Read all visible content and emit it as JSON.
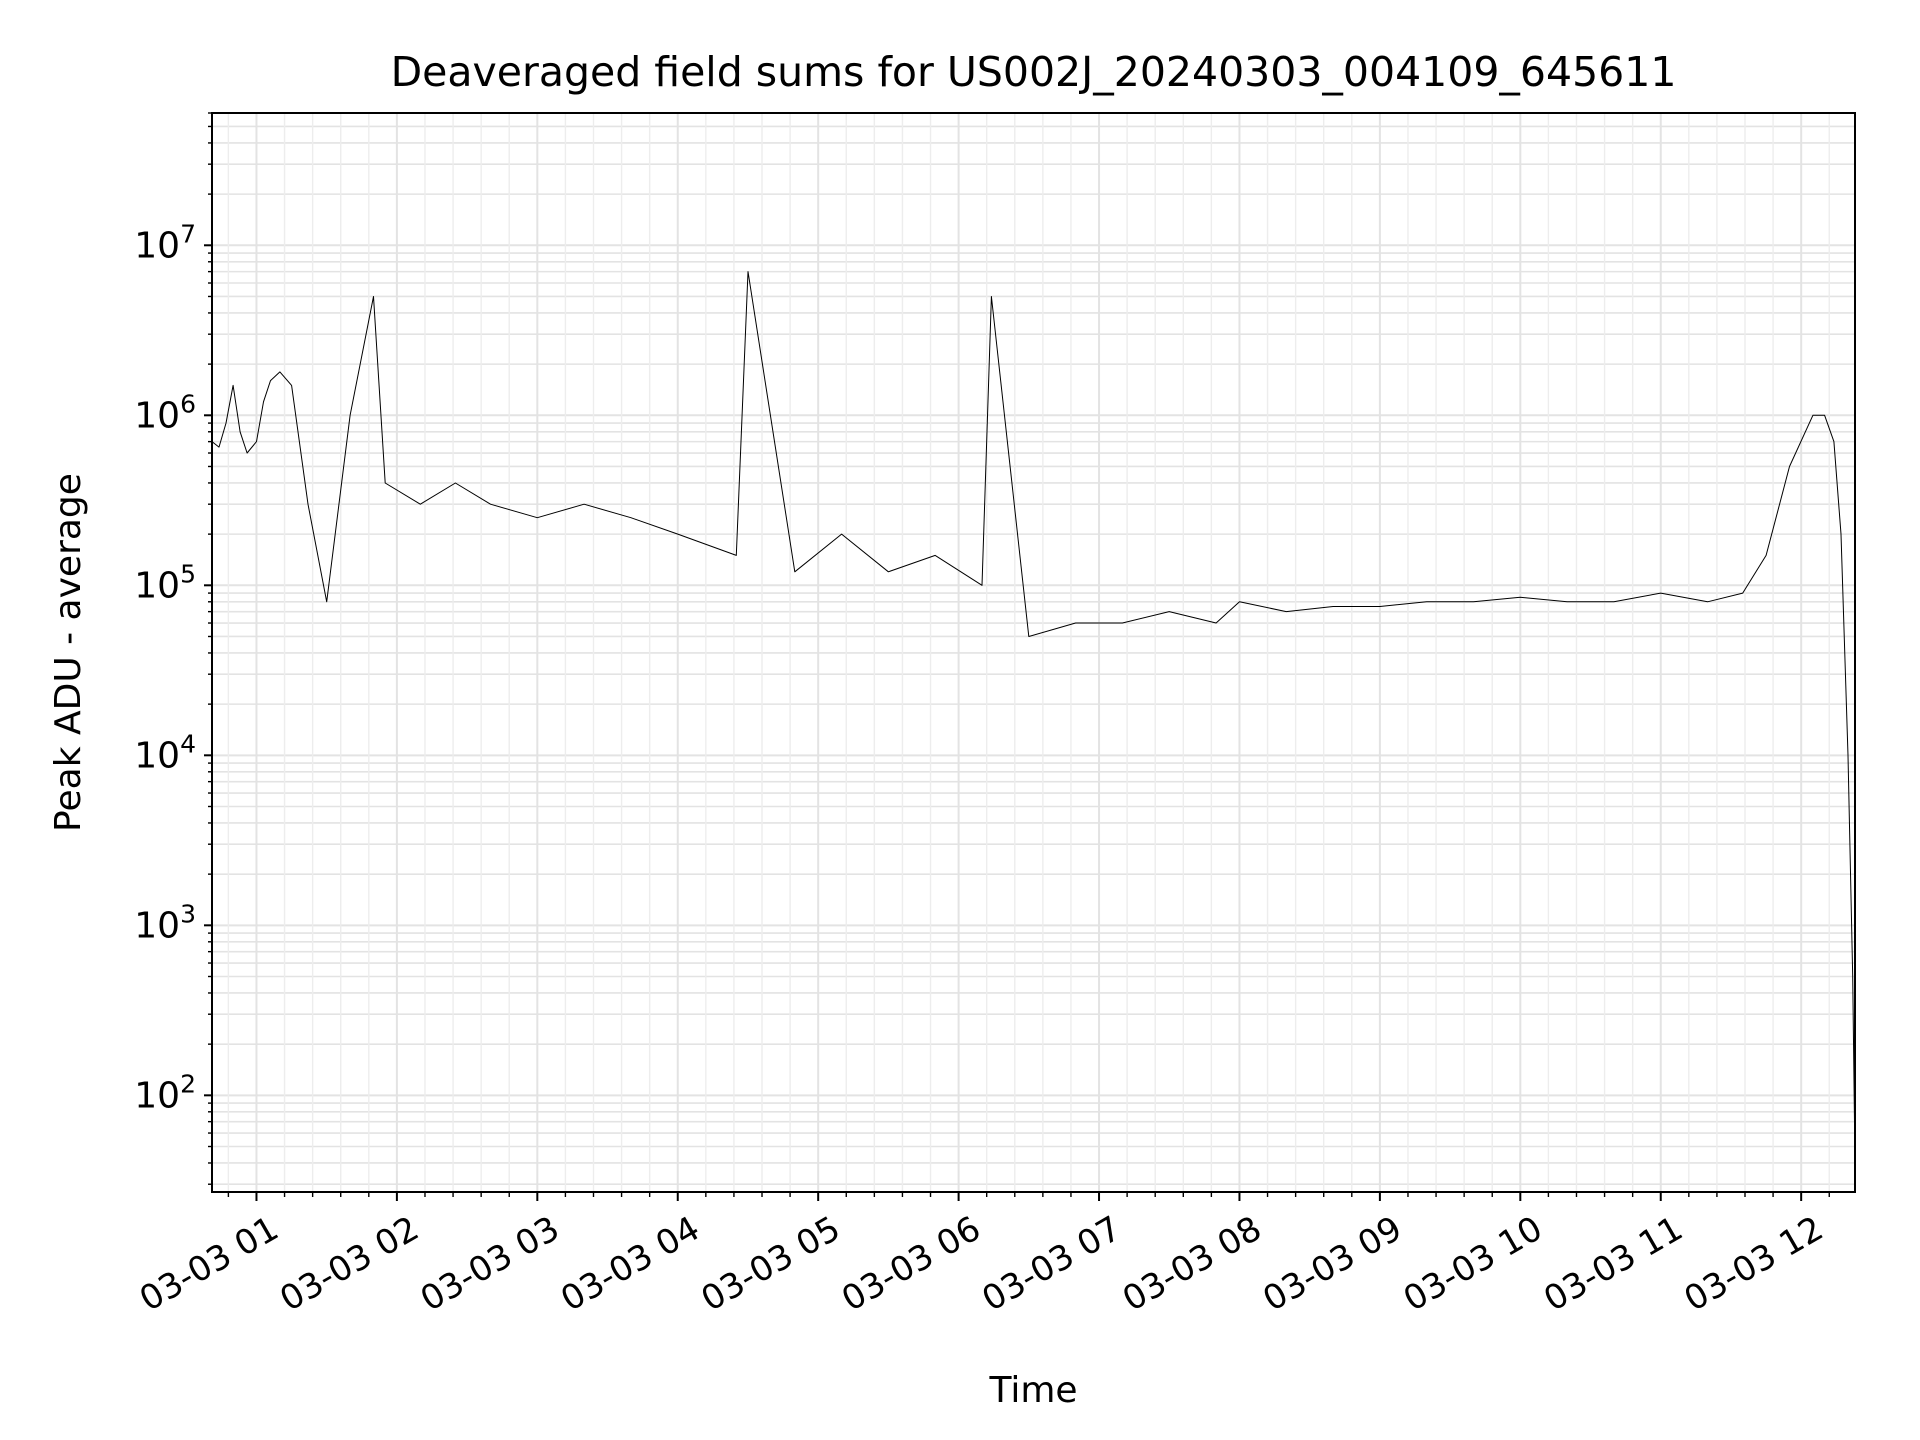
{
  "chart_data": {
    "type": "line",
    "title": "Deaveraged field sums for US002J_20240303_004109_645611",
    "xlabel": "Time",
    "ylabel": "Peak ADU - average",
    "yscale": "log",
    "ylim": [
      27,
      60000000
    ],
    "xlim": [
      "2024-03-03 00:41",
      "2024-03-03 12:23"
    ],
    "grid": true,
    "x_ticks": [
      {
        "value": "2024-03-03 01:00",
        "label": "03-03 01"
      },
      {
        "value": "2024-03-03 02:00",
        "label": "03-03 02"
      },
      {
        "value": "2024-03-03 03:00",
        "label": "03-03 03"
      },
      {
        "value": "2024-03-03 04:00",
        "label": "03-03 04"
      },
      {
        "value": "2024-03-03 05:00",
        "label": "03-03 05"
      },
      {
        "value": "2024-03-03 06:00",
        "label": "03-03 06"
      },
      {
        "value": "2024-03-03 07:00",
        "label": "03-03 07"
      },
      {
        "value": "2024-03-03 08:00",
        "label": "03-03 08"
      },
      {
        "value": "2024-03-03 09:00",
        "label": "03-03 09"
      },
      {
        "value": "2024-03-03 10:00",
        "label": "03-03 10"
      },
      {
        "value": "2024-03-03 11:00",
        "label": "03-03 11"
      },
      {
        "value": "2024-03-03 12:00",
        "label": "03-03 12"
      }
    ],
    "y_ticks": [
      {
        "value": 100,
        "base": "10",
        "exp": "2"
      },
      {
        "value": 1000,
        "base": "10",
        "exp": "3"
      },
      {
        "value": 10000,
        "base": "10",
        "exp": "4"
      },
      {
        "value": 100000,
        "base": "10",
        "exp": "5"
      },
      {
        "value": 1000000,
        "base": "10",
        "exp": "6"
      },
      {
        "value": 10000000,
        "base": "10",
        "exp": "7"
      }
    ],
    "line_color": "#000000",
    "series": [
      {
        "x": [
          "2024-03-03 00:41",
          "2024-03-03 00:44",
          "2024-03-03 00:47",
          "2024-03-03 00:50",
          "2024-03-03 00:53",
          "2024-03-03 00:56",
          "2024-03-03 01:00",
          "2024-03-03 01:03",
          "2024-03-03 01:06",
          "2024-03-03 01:10",
          "2024-03-03 01:15",
          "2024-03-03 01:22",
          "2024-03-03 01:30",
          "2024-03-03 01:40",
          "2024-03-03 01:50",
          "2024-03-03 01:55",
          "2024-03-03 02:10",
          "2024-03-03 02:25",
          "2024-03-03 02:40",
          "2024-03-03 03:00",
          "2024-03-03 03:20",
          "2024-03-03 03:40",
          "2024-03-03 04:00",
          "2024-03-03 04:25",
          "2024-03-03 04:30",
          "2024-03-03 04:50",
          "2024-03-03 05:10",
          "2024-03-03 05:30",
          "2024-03-03 05:50",
          "2024-03-03 06:10",
          "2024-03-03 06:14",
          "2024-03-03 06:30",
          "2024-03-03 06:50",
          "2024-03-03 07:10",
          "2024-03-03 07:30",
          "2024-03-03 07:50",
          "2024-03-03 08:00",
          "2024-03-03 08:20",
          "2024-03-03 08:40",
          "2024-03-03 09:00",
          "2024-03-03 09:20",
          "2024-03-03 09:40",
          "2024-03-03 10:00",
          "2024-03-03 10:20",
          "2024-03-03 10:40",
          "2024-03-03 11:00",
          "2024-03-03 11:20",
          "2024-03-03 11:35",
          "2024-03-03 11:45",
          "2024-03-03 11:55",
          "2024-03-03 12:05",
          "2024-03-03 12:10",
          "2024-03-03 12:14",
          "2024-03-03 12:17",
          "2024-03-03 12:20",
          "2024-03-03 12:22",
          "2024-03-03 12:23"
        ],
        "y": [
          700000,
          650000,
          900000,
          1500000,
          800000,
          600000,
          700000,
          1200000,
          1600000,
          1800000,
          1500000,
          300000,
          80000,
          1000000,
          5000000,
          400000,
          300000,
          400000,
          300000,
          250000,
          300000,
          250000,
          200000,
          150000,
          7000000,
          120000,
          200000,
          120000,
          150000,
          100000,
          5000000,
          50000,
          60000,
          60000,
          70000,
          60000,
          80000,
          70000,
          75000,
          75000,
          80000,
          80000,
          85000,
          80000,
          80000,
          90000,
          80000,
          90000,
          150000,
          500000,
          1000000,
          1000000,
          700000,
          200000,
          10000,
          500,
          40
        ]
      }
    ]
  }
}
